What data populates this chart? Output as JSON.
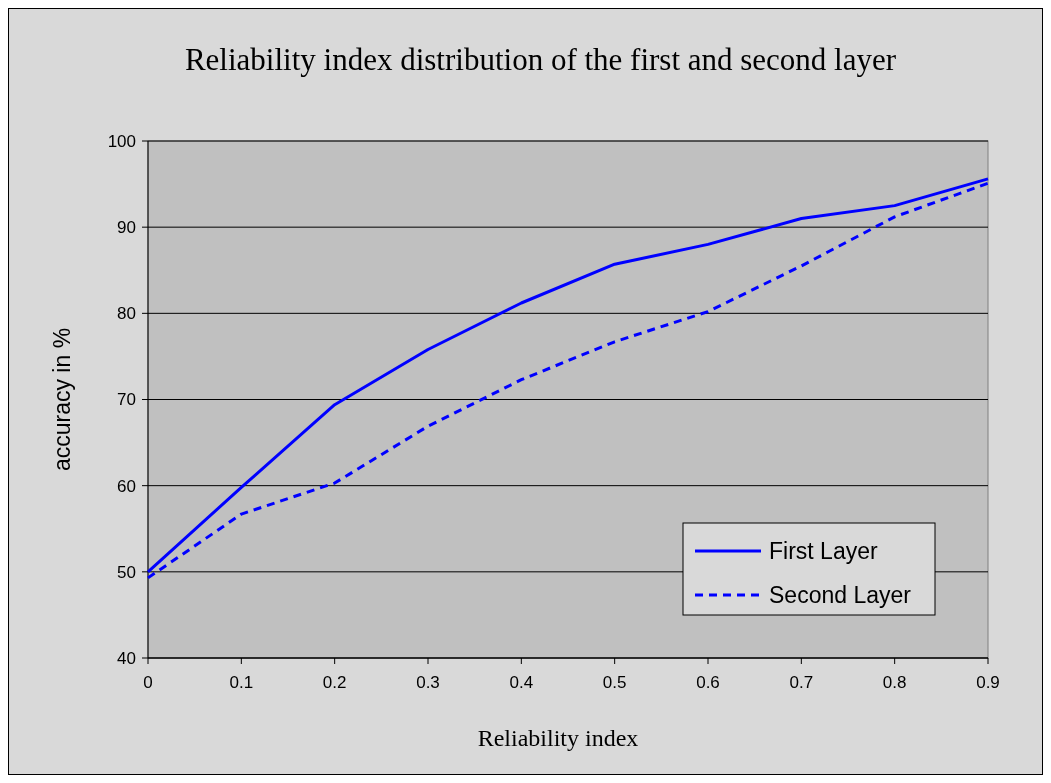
{
  "chart_data": {
    "type": "line",
    "title": "Reliability index distribution of the first and second layer",
    "xlabel": "Reliability index",
    "ylabel": "accuracy in %",
    "x": [
      0,
      0.1,
      0.2,
      0.3,
      0.4,
      0.5,
      0.6,
      0.7,
      0.8,
      0.9
    ],
    "series": [
      {
        "name": "First Layer",
        "color": "#0000ff",
        "line_style": "solid",
        "values": [
          50,
          59.8,
          69.4,
          75.8,
          81.2,
          85.7,
          88,
          91,
          92.5,
          95.6
        ]
      },
      {
        "name": "Second Layer",
        "color": "#0000ff",
        "line_style": "dashed",
        "values": [
          49.3,
          56.7,
          60.3,
          66.9,
          72.3,
          76.7,
          80.2,
          85.5,
          91.2,
          95.1
        ]
      }
    ],
    "xlim": [
      0,
      0.9
    ],
    "xticks": [
      0,
      0.1,
      0.2,
      0.3,
      0.4,
      0.5,
      0.6,
      0.7,
      0.8,
      0.9
    ],
    "ylim": [
      40,
      100
    ],
    "yticks": [
      40,
      50,
      60,
      70,
      80,
      90,
      100
    ],
    "grid": "y",
    "legend": "bottom right",
    "marker": "none"
  }
}
